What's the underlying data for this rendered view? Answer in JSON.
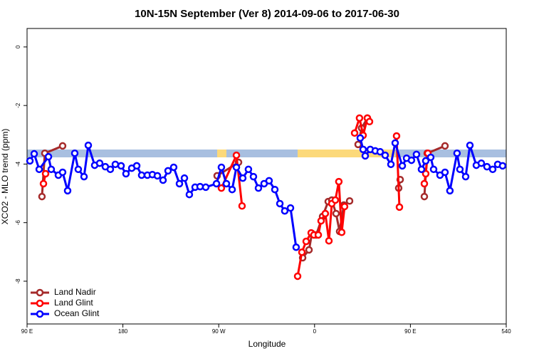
{
  "chart_data": {
    "type": "line",
    "title": "10N-15N September (Ver 8)   2014-09-06 to 2017-06-30",
    "x_label": "Longitude",
    "y_label": "XCO2 - MLO trend (ppm)",
    "xlim": [
      90,
      540
    ],
    "xticks": [
      {
        "value": 90,
        "label": "90 E"
      },
      180,
      {
        "value": 270,
        "label": "90 W"
      },
      {
        "value": 360,
        "label": "0"
      },
      {
        "value": 450,
        "label": "90 E"
      },
      540
    ],
    "ylim": [
      -9.46,
      0.63
    ],
    "yticks": [
      0,
      -2,
      -4,
      -6,
      -8
    ],
    "legend": "bottom-left",
    "series": [
      {
        "name": "Land Nadir",
        "color": "#a52a2a",
        "x": [
          104.0,
          106.7,
          123.4,
          null,
          268.5,
          288.6,
          null,
          348.8,
          354.8,
          357.5,
          361.5,
          367.5,
          372.8,
          376.2,
          380.2,
          383.5,
          387.5,
          392.9,
          null,
          400.9,
          404.2,
          409.6,
          null,
          439.0,
          440.4,
          null,
          463.1,
          465.8,
          482.5
        ],
        "values": [
          -5.11,
          -3.63,
          -3.38,
          null,
          -4.4,
          -3.94,
          null,
          -7.2,
          -6.93,
          -6.37,
          -6.42,
          -5.79,
          -5.28,
          -5.23,
          -5.69,
          -6.3,
          -5.4,
          -5.26,
          null,
          -3.33,
          -2.77,
          -2.43,
          null,
          -4.82,
          -4.53,
          null,
          -5.11,
          -3.63,
          -3.38
        ]
      },
      {
        "name": "Land Glint",
        "color": "#ff0000",
        "x": [
          105.4,
          107.4,
          null,
          272.5,
          286.6,
          291.9,
          null,
          344.1,
          348.1,
          352.1,
          356.8,
          359.4,
          363.5,
          366.1,
          370.1,
          373.5,
          376.2,
          379.5,
          382.8,
          385.5,
          388.2,
          null,
          397.6,
          402.2,
          405.6,
          409.6,
          411.6,
          null,
          437.0,
          439.7,
          null,
          463.1,
          464.4,
          466.4
        ],
        "values": [
          -4.67,
          -4.33,
          null,
          -4.82,
          -3.7,
          -5.43,
          null,
          -7.83,
          -7.01,
          -6.64,
          -6.35,
          -6.42,
          -6.42,
          -5.94,
          -5.69,
          -6.62,
          -5.35,
          -5.23,
          -4.6,
          -6.33,
          -5.45,
          null,
          -2.94,
          -2.43,
          -3.02,
          -2.43,
          -2.55,
          null,
          -3.04,
          -5.47,
          null,
          -4.67,
          -4.33,
          -3.63
        ]
      },
      {
        "name": "Ocean Glint",
        "color": "#0000ff",
        "x": [
          92.7,
          96.7,
          101.4,
          110.1,
          112.7,
          119.4,
          123.4,
          128.1,
          134.8,
          138.1,
          143.5,
          147.5,
          153.5,
          158.2,
          163.5,
          168.2,
          172.9,
          178.3,
          182.9,
          188.3,
          193.0,
          197.6,
          203.0,
          207.7,
          212.4,
          217.7,
          222.4,
          227.7,
          233.1,
          237.8,
          242.4,
          247.8,
          252.5,
          257.8,
          267.9,
          272.5,
          277.2,
          282.6,
          286.6,
          292.6,
          297.9,
          302.6,
          307.3,
          312.6,
          317.3,
          322.7,
          327.4,
          332.0,
          337.4,
          342.7,
          null,
          402.9,
          405.6,
          407.6,
          412.3,
          417.0,
          421.6,
          426.3,
          431.7,
          435.7,
          442.4,
          446.4,
          451.0,
          455.7,
          460.4,
          464.4,
          469.1,
          471.8,
          477.8,
          482.5,
          487.1,
          493.8,
          496.5,
          501.9,
          505.9,
          511.9,
          516.6,
          521.9,
          527.3,
          532.0,
          536.6
        ],
        "values": [
          -3.89,
          -3.65,
          -4.18,
          -3.75,
          -4.18,
          -4.38,
          -4.28,
          -4.91,
          -3.63,
          -4.18,
          -4.43,
          -3.36,
          -4.04,
          -3.97,
          -4.09,
          -4.18,
          -4.01,
          -4.06,
          -4.33,
          -4.14,
          -4.06,
          -4.38,
          -4.38,
          -4.36,
          -4.4,
          -4.55,
          -4.23,
          -4.11,
          -4.67,
          -4.48,
          -5.04,
          -4.79,
          -4.77,
          -4.79,
          -4.67,
          -4.11,
          -4.67,
          -4.87,
          -4.11,
          -4.48,
          -4.18,
          -4.43,
          -4.82,
          -4.67,
          -4.57,
          -4.87,
          -5.35,
          -5.6,
          -5.5,
          -6.84,
          null,
          -3.11,
          -3.5,
          -3.72,
          -3.5,
          -3.55,
          -3.58,
          -3.7,
          -4.01,
          -3.28,
          -4.06,
          -3.8,
          -3.87,
          -3.67,
          -4.18,
          -3.89,
          -3.77,
          -4.18,
          -4.38,
          -4.28,
          -4.91,
          -3.63,
          -4.18,
          -4.43,
          -3.36,
          -4.04,
          -3.97,
          -4.09,
          -4.18,
          -4.01,
          -4.06
        ]
      }
    ]
  }
}
